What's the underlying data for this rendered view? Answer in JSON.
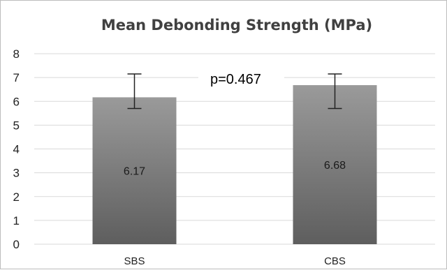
{
  "chart_data": {
    "type": "bar",
    "title": "Mean Debonding Strength (MPa)",
    "xlabel": "",
    "ylabel": "",
    "categories": [
      "SBS",
      "CBS"
    ],
    "values": [
      6.17,
      6.68
    ],
    "data_labels": [
      "6.17",
      "6.68"
    ],
    "error_bars": [
      {
        "low": 5.7,
        "high": 7.15
      },
      {
        "low": 5.7,
        "high": 7.15
      }
    ],
    "ylim": [
      0,
      8
    ],
    "yticks": [
      "0",
      "1",
      "2",
      "3",
      "4",
      "5",
      "6",
      "7",
      "8"
    ],
    "grid": true,
    "legend": "none",
    "annotation": "p=0.467",
    "colors": {
      "bar_top": "#9a9a9a",
      "bar_bottom": "#5e5e5e",
      "gridline": "#d9d9d9",
      "error_bar": "#222222"
    }
  }
}
